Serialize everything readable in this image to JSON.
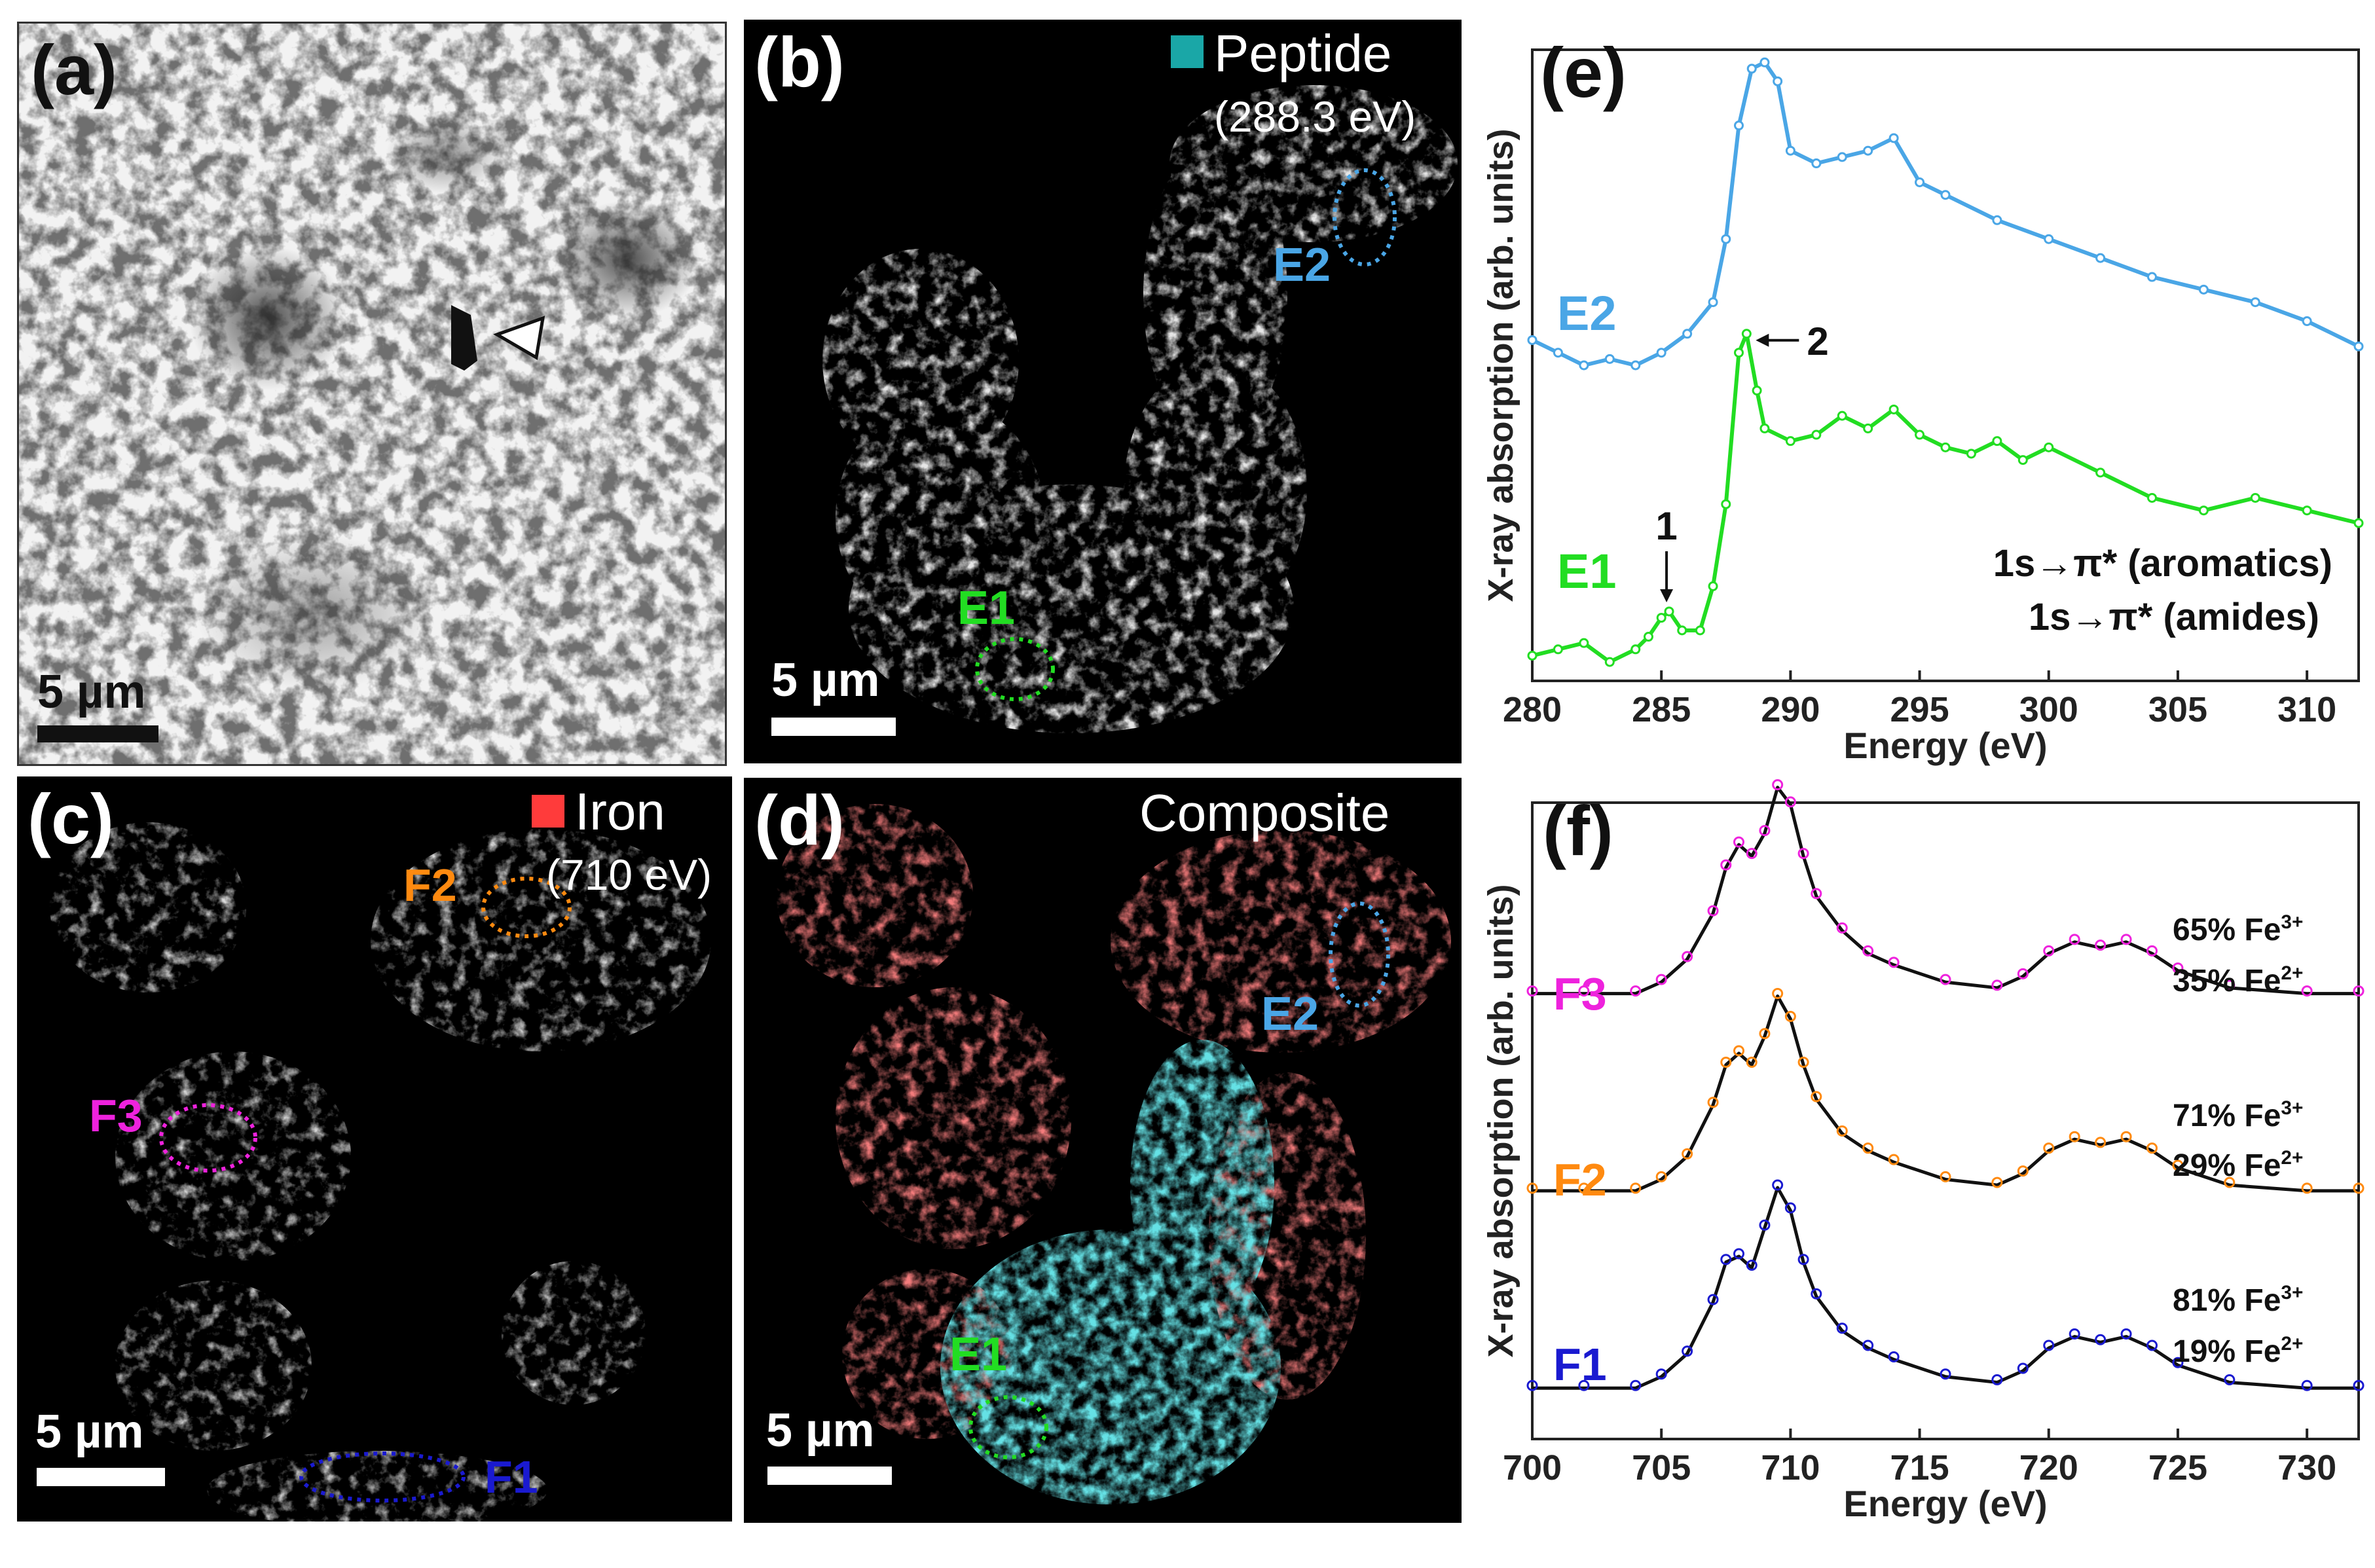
{
  "panels": {
    "a": {
      "label": "(a)",
      "scale": "5 µm"
    },
    "b": {
      "label": "(b)",
      "legend": "Peptide",
      "energy": "(288.3 eV)",
      "scale": "5 µm",
      "regions": [
        "E2",
        "E1"
      ],
      "legend_color": "#1aa7a7"
    },
    "c": {
      "label": "(c)",
      "legend": "Iron",
      "energy": "(710 eV)",
      "scale": "5 µm",
      "regions": [
        "F2",
        "F3",
        "F1"
      ],
      "legend_color": "#ff3b3b"
    },
    "d": {
      "label": "(d)",
      "legend": "Composite",
      "scale": "5 µm",
      "regions": [
        "E2",
        "E1"
      ]
    },
    "e": {
      "label": "(e)",
      "curve_labels": [
        "E2",
        "E1"
      ],
      "peak_1": "1",
      "peak_2": "2",
      "annot_line1": "1s→π* (aromatics)",
      "annot_line2": "1s→π* (amides)"
    },
    "f": {
      "label": "(f)",
      "curve_labels": [
        "F3",
        "F2",
        "F1"
      ],
      "fits": [
        {
          "fe3": "65% Fe3+",
          "fe2": "35% Fe2+"
        },
        {
          "fe3": "71% Fe3+",
          "fe2": "29% Fe2+"
        },
        {
          "fe3": "81% Fe3+",
          "fe2": "19% Fe2+"
        }
      ]
    }
  },
  "colors": {
    "E1": "#22dd22",
    "E2": "#4aa6e6",
    "F1": "#1a1ad0",
    "F2": "#ff8a10",
    "F3": "#ee22dd",
    "cyan": "#22b8c0",
    "red": "#e03030"
  },
  "chart_data": [
    {
      "type": "line",
      "panel": "(e)",
      "title": "",
      "xlabel": "Energy (eV)",
      "ylabel": "X-ray absorption (arb. units)",
      "xlim": [
        280,
        312
      ],
      "ylim": [
        0,
        1
      ],
      "xticks": [
        280,
        285,
        290,
        295,
        300,
        305,
        310
      ],
      "series": [
        {
          "name": "E2",
          "color": "#4aa6e6",
          "x": [
            280,
            281,
            282,
            283,
            284,
            285,
            286,
            287,
            287.5,
            288,
            288.5,
            289,
            289.5,
            290,
            291,
            292,
            293,
            294,
            295,
            296,
            298,
            300,
            302,
            304,
            306,
            308,
            310,
            312
          ],
          "y": [
            0.54,
            0.52,
            0.5,
            0.51,
            0.5,
            0.52,
            0.55,
            0.6,
            0.7,
            0.88,
            0.97,
            0.98,
            0.95,
            0.84,
            0.82,
            0.83,
            0.84,
            0.86,
            0.79,
            0.77,
            0.73,
            0.7,
            0.67,
            0.64,
            0.62,
            0.6,
            0.57,
            0.53
          ]
        },
        {
          "name": "E1",
          "color": "#22dd22",
          "x": [
            280,
            281,
            282,
            283,
            284,
            284.5,
            285,
            285.3,
            285.8,
            286.5,
            287,
            287.5,
            288,
            288.3,
            288.7,
            289,
            290,
            291,
            292,
            293,
            294,
            295,
            296,
            297,
            298,
            299,
            300,
            302,
            304,
            306,
            308,
            310,
            312
          ],
          "y": [
            0.04,
            0.05,
            0.06,
            0.03,
            0.05,
            0.07,
            0.1,
            0.11,
            0.08,
            0.08,
            0.15,
            0.28,
            0.52,
            0.55,
            0.46,
            0.4,
            0.38,
            0.39,
            0.42,
            0.4,
            0.43,
            0.39,
            0.37,
            0.36,
            0.38,
            0.35,
            0.37,
            0.33,
            0.29,
            0.27,
            0.29,
            0.27,
            0.25
          ]
        }
      ],
      "annotations": [
        "1",
        "2",
        "1s→π* (aromatics)",
        "1s→π* (amides)"
      ]
    },
    {
      "type": "line",
      "panel": "(f)",
      "title": "",
      "xlabel": "Energy (eV)",
      "ylabel": "X-ray absorption (arb. units)",
      "xlim": [
        700,
        732
      ],
      "ylim": [
        0,
        1
      ],
      "xticks": [
        700,
        705,
        710,
        715,
        720,
        725,
        730
      ],
      "series": [
        {
          "name": "F3",
          "color": "#ee22dd",
          "offset": 0.62,
          "x": [
            700,
            702,
            704,
            705,
            706,
            707,
            707.5,
            708,
            708.5,
            709,
            709.5,
            710,
            710.5,
            711,
            712,
            713,
            714,
            716,
            718,
            719,
            720,
            721,
            722,
            723,
            724,
            725,
            727,
            730,
            732
          ],
          "y": [
            0.0,
            0.0,
            0.0,
            0.02,
            0.06,
            0.14,
            0.22,
            0.26,
            0.24,
            0.28,
            0.36,
            0.33,
            0.24,
            0.17,
            0.11,
            0.07,
            0.05,
            0.02,
            0.01,
            0.03,
            0.07,
            0.09,
            0.08,
            0.09,
            0.07,
            0.04,
            0.01,
            0.0,
            0.0
          ]
        },
        {
          "name": "F2",
          "color": "#ff8a10",
          "offset": 0.31,
          "x": [
            700,
            702,
            704,
            705,
            706,
            707,
            707.5,
            708,
            708.5,
            709,
            709.5,
            710,
            710.5,
            711,
            712,
            713,
            714,
            716,
            718,
            719,
            720,
            721,
            722,
            723,
            724,
            725,
            727,
            730,
            732
          ],
          "y": [
            0.0,
            0.0,
            0.0,
            0.02,
            0.06,
            0.15,
            0.22,
            0.24,
            0.22,
            0.27,
            0.34,
            0.3,
            0.22,
            0.16,
            0.1,
            0.07,
            0.05,
            0.02,
            0.01,
            0.03,
            0.07,
            0.09,
            0.08,
            0.09,
            0.07,
            0.04,
            0.01,
            0.0,
            0.0
          ]
        },
        {
          "name": "F1",
          "color": "#1a1ad0",
          "offset": 0.0,
          "x": [
            700,
            702,
            704,
            705,
            706,
            707,
            707.5,
            708,
            708.5,
            709,
            709.5,
            710,
            710.5,
            711,
            712,
            713,
            714,
            716,
            718,
            719,
            720,
            721,
            722,
            723,
            724,
            725,
            727,
            730,
            732
          ],
          "y": [
            0.0,
            0.0,
            0.0,
            0.02,
            0.06,
            0.15,
            0.22,
            0.23,
            0.21,
            0.28,
            0.35,
            0.31,
            0.22,
            0.16,
            0.1,
            0.07,
            0.05,
            0.02,
            0.01,
            0.03,
            0.07,
            0.09,
            0.08,
            0.09,
            0.07,
            0.04,
            0.01,
            0.0,
            0.0
          ]
        }
      ]
    }
  ]
}
